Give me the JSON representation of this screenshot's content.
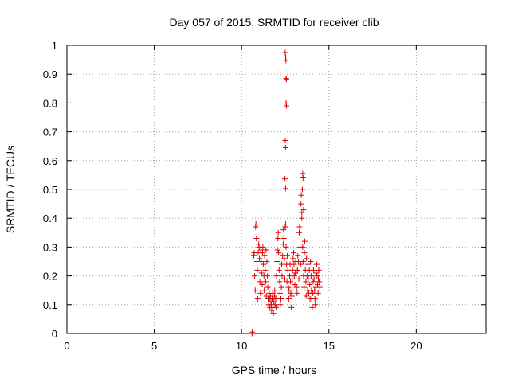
{
  "chart_data": {
    "type": "scatter",
    "title": "Day 057 of 2015, SRMTID for receiver clib",
    "xlabel": "GPS time / hours",
    "ylabel": "SRMTID / TECUs",
    "xlim": [
      0,
      24
    ],
    "ylim": [
      0,
      1
    ],
    "xticks": [
      0,
      5,
      10,
      15,
      20
    ],
    "xtick_labels": [
      "0",
      "5",
      "10",
      "15",
      "20"
    ],
    "yticks": [
      0,
      0.1,
      0.2,
      0.3,
      0.4,
      0.5,
      0.6,
      0.7,
      0.8,
      0.9,
      1
    ],
    "ytick_labels": [
      "0",
      "0.1",
      "0.2",
      "0.3",
      "0.4",
      "0.5",
      "0.6",
      "0.7",
      "0.8",
      "0.9",
      "1"
    ],
    "grid": true,
    "marker": "+",
    "color": "#e00000",
    "series": [
      {
        "name": "clib",
        "points": [
          [
            10.6,
            0.0
          ],
          [
            10.62,
            0.005
          ],
          [
            10.7,
            0.27
          ],
          [
            10.72,
            0.28
          ],
          [
            10.75,
            0.2
          ],
          [
            10.78,
            0.15
          ],
          [
            10.8,
            0.37
          ],
          [
            10.82,
            0.38
          ],
          [
            10.85,
            0.33
          ],
          [
            10.88,
            0.25
          ],
          [
            10.9,
            0.22
          ],
          [
            10.92,
            0.12
          ],
          [
            10.95,
            0.28
          ],
          [
            10.98,
            0.31
          ],
          [
            11.0,
            0.3
          ],
          [
            11.02,
            0.26
          ],
          [
            11.05,
            0.18
          ],
          [
            11.08,
            0.14
          ],
          [
            11.1,
            0.29
          ],
          [
            11.12,
            0.25
          ],
          [
            11.15,
            0.21
          ],
          [
            11.18,
            0.17
          ],
          [
            11.2,
            0.28
          ],
          [
            11.22,
            0.3
          ],
          [
            11.25,
            0.24
          ],
          [
            11.28,
            0.2
          ],
          [
            11.3,
            0.15
          ],
          [
            11.32,
            0.27
          ],
          [
            11.35,
            0.22
          ],
          [
            11.38,
            0.18
          ],
          [
            11.4,
            0.29
          ],
          [
            11.42,
            0.13
          ],
          [
            11.45,
            0.25
          ],
          [
            11.48,
            0.2
          ],
          [
            11.5,
            0.16
          ],
          [
            11.52,
            0.12
          ],
          [
            11.55,
            0.1
          ],
          [
            11.58,
            0.14
          ],
          [
            11.6,
            0.12
          ],
          [
            11.62,
            0.09
          ],
          [
            11.65,
            0.13
          ],
          [
            11.68,
            0.11
          ],
          [
            11.7,
            0.1
          ],
          [
            11.72,
            0.08
          ],
          [
            11.75,
            0.12
          ],
          [
            11.78,
            0.14
          ],
          [
            11.8,
            0.09
          ],
          [
            11.82,
            0.07
          ],
          [
            11.85,
            0.11
          ],
          [
            11.88,
            0.13
          ],
          [
            11.9,
            0.15
          ],
          [
            11.92,
            0.1
          ],
          [
            11.95,
            0.12
          ],
          [
            11.98,
            0.09
          ],
          [
            12.0,
            0.2
          ],
          [
            12.02,
            0.25
          ],
          [
            12.05,
            0.29
          ],
          [
            12.08,
            0.33
          ],
          [
            12.1,
            0.35
          ],
          [
            12.12,
            0.28
          ],
          [
            12.15,
            0.22
          ],
          [
            12.18,
            0.18
          ],
          [
            12.2,
            0.14
          ],
          [
            12.22,
            0.1
          ],
          [
            12.25,
            0.12
          ],
          [
            12.28,
            0.16
          ],
          [
            12.3,
            0.24
          ],
          [
            12.32,
            0.2
          ],
          [
            12.35,
            0.27
          ],
          [
            12.38,
            0.31
          ],
          [
            12.4,
            0.36
          ],
          [
            12.42,
            0.33
          ],
          [
            12.45,
            0.26
          ],
          [
            12.48,
            0.19
          ],
          [
            12.5,
            0.37
          ],
          [
            12.52,
            0.38
          ],
          [
            12.55,
            0.3
          ],
          [
            12.58,
            0.24
          ],
          [
            12.6,
            0.18
          ],
          [
            12.62,
            0.27
          ],
          [
            12.65,
            0.22
          ],
          [
            12.68,
            0.16
          ],
          [
            12.7,
            0.12
          ],
          [
            12.72,
            0.15
          ],
          [
            12.75,
            0.2
          ],
          [
            12.78,
            0.24
          ],
          [
            12.8,
            0.18
          ],
          [
            12.82,
            0.14
          ],
          [
            12.85,
            0.09
          ],
          [
            12.88,
            0.13
          ],
          [
            12.5,
            0.975
          ],
          [
            12.52,
            0.96
          ],
          [
            12.54,
            0.948
          ],
          [
            12.55,
            0.885
          ],
          [
            12.57,
            0.882
          ],
          [
            12.55,
            0.8
          ],
          [
            12.57,
            0.79
          ],
          [
            12.5,
            0.67
          ],
          [
            12.52,
            0.645
          ],
          [
            12.48,
            0.537
          ],
          [
            12.52,
            0.503
          ],
          [
            12.9,
            0.19
          ],
          [
            12.92,
            0.22
          ],
          [
            12.95,
            0.26
          ],
          [
            12.98,
            0.28
          ],
          [
            13.0,
            0.24
          ],
          [
            13.02,
            0.2
          ],
          [
            13.05,
            0.17
          ],
          [
            13.08,
            0.21
          ],
          [
            13.1,
            0.25
          ],
          [
            13.12,
            0.22
          ],
          [
            13.15,
            0.16
          ],
          [
            13.18,
            0.14
          ],
          [
            13.2,
            0.22
          ],
          [
            13.22,
            0.27
          ],
          [
            13.25,
            0.25
          ],
          [
            13.28,
            0.19
          ],
          [
            13.3,
            0.35
          ],
          [
            13.32,
            0.37
          ],
          [
            13.35,
            0.3
          ],
          [
            13.38,
            0.24
          ],
          [
            13.4,
            0.45
          ],
          [
            13.42,
            0.48
          ],
          [
            13.45,
            0.42
          ],
          [
            13.48,
            0.5
          ],
          [
            13.5,
            0.555
          ],
          [
            13.52,
            0.54
          ],
          [
            13.55,
            0.43
          ],
          [
            13.45,
            0.4
          ],
          [
            13.5,
            0.3
          ],
          [
            13.52,
            0.25
          ],
          [
            13.55,
            0.2
          ],
          [
            13.58,
            0.16
          ],
          [
            13.6,
            0.28
          ],
          [
            13.62,
            0.32
          ],
          [
            13.65,
            0.22
          ],
          [
            13.68,
            0.18
          ],
          [
            13.7,
            0.13
          ],
          [
            13.72,
            0.26
          ],
          [
            13.75,
            0.2
          ],
          [
            13.78,
            0.15
          ],
          [
            13.8,
            0.24
          ],
          [
            13.82,
            0.19
          ],
          [
            13.85,
            0.14
          ],
          [
            13.88,
            0.22
          ],
          [
            13.9,
            0.17
          ],
          [
            13.92,
            0.12
          ],
          [
            13.95,
            0.25
          ],
          [
            13.98,
            0.2
          ],
          [
            14.0,
            0.15
          ],
          [
            14.02,
            0.12
          ],
          [
            14.05,
            0.09
          ],
          [
            14.08,
            0.14
          ],
          [
            14.1,
            0.18
          ],
          [
            14.12,
            0.22
          ],
          [
            14.15,
            0.19
          ],
          [
            14.18,
            0.15
          ],
          [
            14.2,
            0.12
          ],
          [
            14.22,
            0.1
          ],
          [
            14.25,
            0.16
          ],
          [
            14.28,
            0.21
          ],
          [
            14.3,
            0.24
          ],
          [
            14.32,
            0.2
          ],
          [
            14.35,
            0.17
          ],
          [
            14.38,
            0.14
          ],
          [
            14.4,
            0.19
          ],
          [
            14.42,
            0.22
          ],
          [
            14.45,
            0.18
          ],
          [
            14.48,
            0.16
          ]
        ]
      }
    ]
  }
}
